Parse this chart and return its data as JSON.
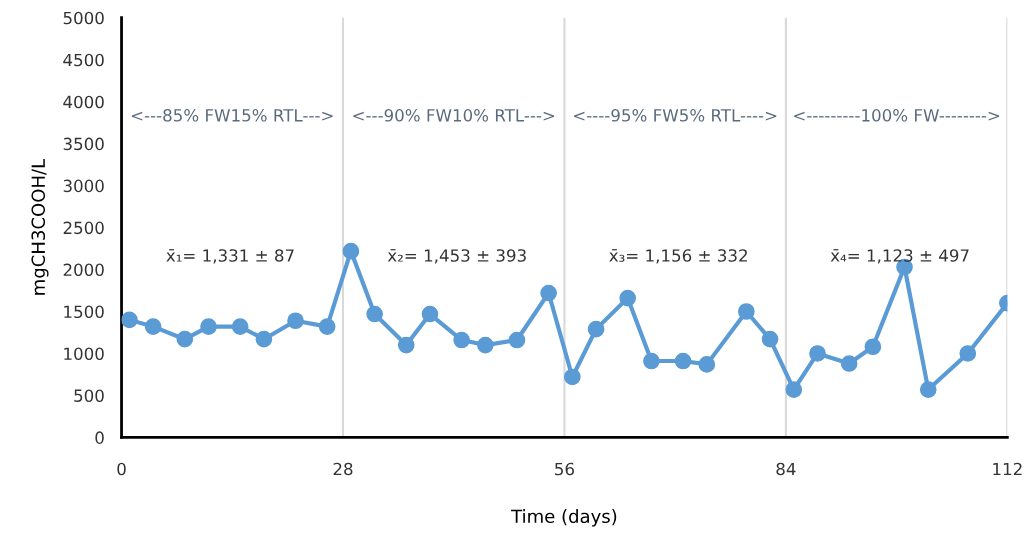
{
  "chart_data": {
    "type": "line",
    "xlabel": "Time (days)",
    "ylabel": "mgCH3COOH/L",
    "x": [
      1,
      4,
      8,
      11,
      15,
      18,
      22,
      26,
      29,
      32,
      36,
      39,
      43,
      46,
      50,
      54,
      57,
      60,
      64,
      67,
      71,
      74,
      79,
      82,
      85,
      88,
      92,
      95,
      99,
      102,
      107,
      112
    ],
    "series": [
      {
        "color": "#5b9bd5",
        "values": [
          1400,
          1320,
          1170,
          1320,
          1320,
          1170,
          1390,
          1320,
          2220,
          1470,
          1100,
          1470,
          1160,
          1100,
          1160,
          1720,
          720,
          1290,
          1660,
          910,
          910,
          870,
          1500,
          1170,
          570,
          1000,
          880,
          1080,
          2030,
          570,
          1000,
          1600
        ]
      }
    ],
    "xlim": [
      0,
      112
    ],
    "xticks": [
      0,
      28,
      56,
      84,
      112
    ],
    "ylim": [
      0,
      5000
    ],
    "yticks": [
      0,
      500,
      1000,
      1500,
      2000,
      2500,
      3000,
      3500,
      4000,
      4500,
      5000
    ],
    "grid": "x",
    "marker": "circle",
    "line_style": "solid",
    "legend": false,
    "annotations": [
      "<---85% FW15% RTL--->",
      "<---90% FW10% RTL--->",
      "<----95% FW5% RTL---->",
      "<---------100% FW-------->",
      "x̄₁= 1,331 ± 87",
      "x̄₂= 1,453 ± 393",
      "x̄₃= 1,156 ± 332",
      "x̄₄= 1,123 ± 497"
    ]
  }
}
